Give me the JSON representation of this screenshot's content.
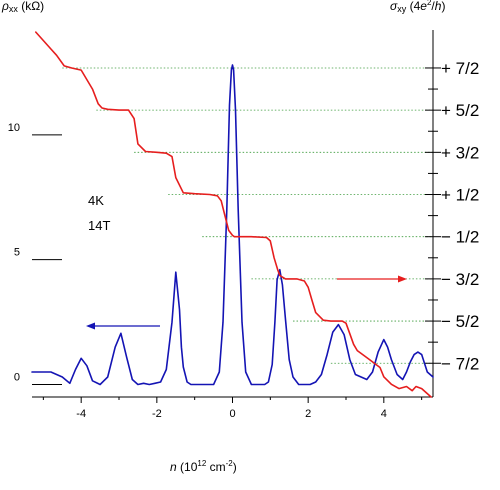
{
  "chart_data": {
    "type": "line",
    "xlabel": "n (10¹² cm⁻²)",
    "ylabel_left": "ρxx (kΩ)",
    "ylabel_right": "σxy (4e²/h)",
    "annotations": [
      "4K",
      "14T"
    ],
    "xlim": [
      -5.3,
      5.3
    ],
    "ylim_left": [
      -0.5,
      14.2
    ],
    "ylim_right": [
      -4.3,
      4.4
    ],
    "grid": false,
    "x_ticks": [
      "-4",
      "-2",
      "0",
      "2",
      "4"
    ],
    "x_tick_values": [
      -4,
      -2,
      0,
      2,
      4
    ],
    "y_left_ticks": [
      "0",
      "5",
      "10"
    ],
    "y_left_tick_values": [
      0,
      5,
      10
    ],
    "y_right_ticks": [
      "+ 7/2",
      "+ 5/2",
      "+ 3/2",
      "+ 1/2",
      "− 1/2",
      "− 3/2",
      "− 5/2",
      "− 7/2"
    ],
    "y_right_tick_values": [
      3.5,
      2.5,
      1.5,
      0.5,
      -0.5,
      -1.5,
      -2.5,
      -3.5
    ],
    "plateau_guides": [
      {
        "level": 3.5,
        "x_start": -4.5
      },
      {
        "level": 2.5,
        "x_start": -3.6
      },
      {
        "level": 1.5,
        "x_start": -2.6
      },
      {
        "level": 0.5,
        "x_start": -1.7
      },
      {
        "level": -0.5,
        "x_start": -0.8
      },
      {
        "level": -1.5,
        "x_start": 0.5
      },
      {
        "level": -2.5,
        "x_start": 1.6
      },
      {
        "level": -3.5,
        "x_start": 2.6
      }
    ],
    "series": [
      {
        "axis": "left",
        "color": "#1414b4",
        "x": [
          -5.3,
          -4.8,
          -4.5,
          -4.3,
          -4.15,
          -4.0,
          -3.85,
          -3.7,
          -3.5,
          -3.3,
          -3.1,
          -2.95,
          -2.8,
          -2.65,
          -2.5,
          -2.35,
          -2.2,
          -2.05,
          -1.9,
          -1.75,
          -1.6,
          -1.5,
          -1.4,
          -1.35,
          -1.3,
          -1.2,
          -1.1,
          -1.0,
          -0.85,
          -0.7,
          -0.5,
          -0.35,
          -0.25,
          -0.15,
          -0.08,
          -0.03,
          0.0,
          0.03,
          0.08,
          0.15,
          0.25,
          0.35,
          0.5,
          0.7,
          0.85,
          0.95,
          1.05,
          1.12,
          1.18,
          1.25,
          1.32,
          1.4,
          1.5,
          1.6,
          1.75,
          1.9,
          2.05,
          2.2,
          2.35,
          2.5,
          2.65,
          2.8,
          2.95,
          3.1,
          3.25,
          3.4,
          3.55,
          3.7,
          3.85,
          4.0,
          4.1,
          4.2,
          4.35,
          4.5,
          4.6,
          4.7,
          4.8,
          4.9,
          5.0,
          5.15,
          5.3
        ],
        "values": [
          0.5,
          0.5,
          0.3,
          0.05,
          0.6,
          1.05,
          0.75,
          0.15,
          0.0,
          0.3,
          1.5,
          2.05,
          1.1,
          0.2,
          0.0,
          0.05,
          0.0,
          0.05,
          0.1,
          0.6,
          2.5,
          4.5,
          3.0,
          1.5,
          0.7,
          0.1,
          0.0,
          0.0,
          0.0,
          0.0,
          0.0,
          0.5,
          2.5,
          7.0,
          11.2,
          12.6,
          12.8,
          12.6,
          11.0,
          7.0,
          2.5,
          0.5,
          0.0,
          0.0,
          0.0,
          0.1,
          0.8,
          2.5,
          4.2,
          4.6,
          4.0,
          2.6,
          1.0,
          0.3,
          0.0,
          0.0,
          0.0,
          0.1,
          0.4,
          1.2,
          2.1,
          2.4,
          2.0,
          1.0,
          0.4,
          0.3,
          0.2,
          0.5,
          1.3,
          1.8,
          1.5,
          1.0,
          0.4,
          0.2,
          0.5,
          0.9,
          1.2,
          1.3,
          1.2,
          0.5,
          0.3
        ]
      },
      {
        "axis": "right",
        "color": "#e61e1e",
        "x": [
          -5.2,
          -5.0,
          -4.8,
          -4.65,
          -4.45,
          -4.25,
          -4.0,
          -3.7,
          -3.55,
          -3.45,
          -3.3,
          -3.0,
          -2.75,
          -2.6,
          -2.5,
          -2.3,
          -2.0,
          -1.75,
          -1.6,
          -1.5,
          -1.3,
          -1.0,
          -0.6,
          -0.4,
          -0.3,
          -0.2,
          -0.1,
          0.0,
          0.05,
          0.1,
          0.2,
          0.5,
          0.9,
          1.0,
          1.1,
          1.2,
          1.25,
          1.4,
          1.7,
          1.9,
          2.0,
          2.1,
          2.2,
          2.4,
          2.6,
          2.9,
          3.0,
          3.1,
          3.2,
          3.3,
          3.6,
          3.9,
          4.0,
          4.2,
          4.4,
          4.6,
          4.75,
          4.85,
          5.0,
          5.25
        ],
        "values": [
          4.35,
          4.15,
          3.95,
          3.8,
          3.55,
          3.5,
          3.45,
          3.0,
          2.65,
          2.55,
          2.52,
          2.5,
          2.5,
          2.3,
          1.7,
          1.52,
          1.5,
          1.48,
          1.4,
          0.9,
          0.54,
          0.52,
          0.5,
          0.47,
          0.35,
          0.0,
          -0.35,
          -0.47,
          -0.5,
          -0.5,
          -0.5,
          -0.5,
          -0.52,
          -0.6,
          -1.0,
          -1.3,
          -1.42,
          -1.5,
          -1.5,
          -1.55,
          -1.7,
          -2.0,
          -2.3,
          -2.48,
          -2.5,
          -2.5,
          -2.55,
          -2.8,
          -3.05,
          -3.2,
          -3.4,
          -3.6,
          -3.82,
          -4.0,
          -4.1,
          -4.05,
          -4.15,
          -4.05,
          -4.1,
          -4.3
        ]
      }
    ]
  }
}
